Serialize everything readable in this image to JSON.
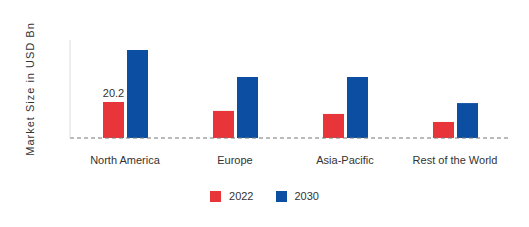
{
  "chart_data": {
    "type": "bar",
    "y_label": "Market Size in USD Bn",
    "categories": [
      "North America",
      "Europe",
      "Asia-Pacific",
      "Rest of the World"
    ],
    "series": [
      {
        "name": "2022",
        "color": "#e8353a",
        "values": [
          20.2,
          15.2,
          13.5,
          9.0
        ],
        "value_labels": [
          "20.2",
          null,
          null,
          null
        ]
      },
      {
        "name": "2030",
        "color": "#0b4ea2",
        "values": [
          49.4,
          34.2,
          34.2,
          19.6
        ]
      }
    ],
    "ylim": [
      0,
      55
    ],
    "yticks": [
      0
    ],
    "grid": false,
    "tick_labels": "x"
  }
}
